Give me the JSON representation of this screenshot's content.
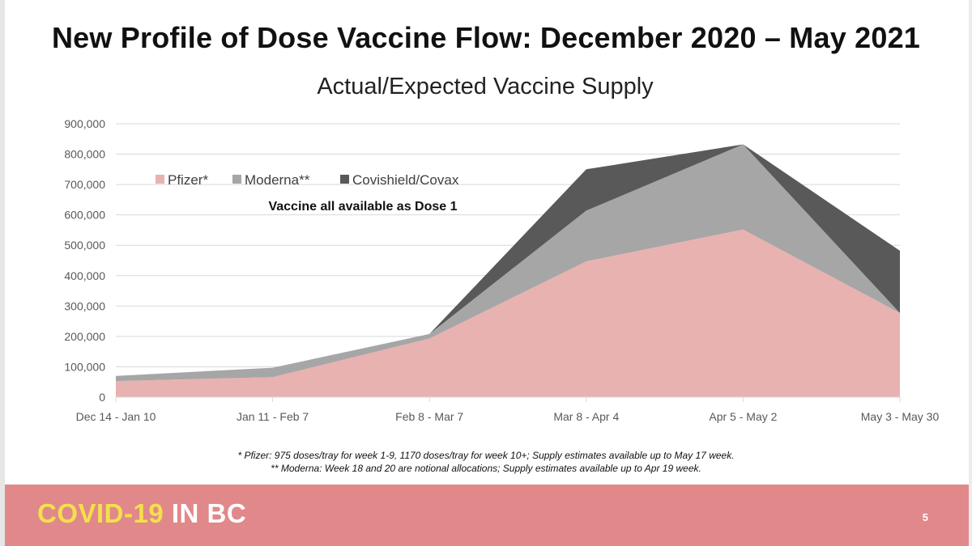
{
  "slide": {
    "title": "New Profile of Dose Vaccine Flow: December 2020 – May 2021",
    "footnotes": [
      "* Pfizer: 975 doses/tray for week 1-9, 1170 doses/tray for week 10+; Supply estimates available up to May 17 week.",
      "** Moderna: Week 18 and 20 are notional allocations; Supply estimates available up to Apr 19 week."
    ],
    "footer": {
      "brand_part1": "COVID-19",
      "brand_part2": "IN BC",
      "page_number": "5",
      "bar_color": "#e1888a",
      "brand_color": "#f3e04a"
    }
  },
  "chart_data": {
    "type": "area",
    "stacked": true,
    "title": "Actual/Expected Vaccine Supply",
    "annotation": "Vaccine all available as Dose 1",
    "categories": [
      "Dec 14 - Jan 10",
      "Jan 11 - Feb 7",
      "Feb 8 - Mar 7",
      "Mar 8 - Apr 4",
      "Apr 5 - May 2",
      "May 3 - May 30"
    ],
    "series": [
      {
        "name": "Pfizer*",
        "color": "#e8b2b0",
        "values": [
          53000,
          66000,
          193000,
          447000,
          552000,
          277000
        ]
      },
      {
        "name": "Moderna**",
        "color": "#a6a6a6",
        "values": [
          17000,
          31000,
          15000,
          167000,
          280000,
          0
        ]
      },
      {
        "name": "Covishield/Covax",
        "color": "#595959",
        "values": [
          0,
          0,
          0,
          136000,
          0,
          205000
        ]
      }
    ],
    "ylim": [
      0,
      900000
    ],
    "yticks": [
      "0",
      "100,000",
      "200,000",
      "300,000",
      "400,000",
      "500,000",
      "600,000",
      "700,000",
      "800,000",
      "900,000"
    ],
    "grid": true,
    "legend_position": "top-left"
  }
}
